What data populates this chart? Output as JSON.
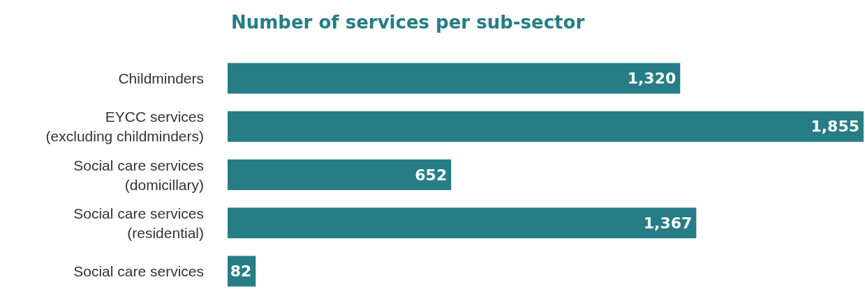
{
  "chart_data": {
    "type": "bar",
    "orientation": "horizontal",
    "title": "Number of services per sub-sector",
    "categories": [
      "Childminders",
      "EYCC services\n(excluding childminders)",
      "Social care services\n(domicillary)",
      "Social care services\n(residential)",
      "Social care services"
    ],
    "values": [
      1320,
      1855,
      652,
      1367,
      82
    ],
    "value_labels": [
      "1,320",
      "1,855",
      "652",
      "1,367",
      "82"
    ],
    "color": "#267d85"
  }
}
